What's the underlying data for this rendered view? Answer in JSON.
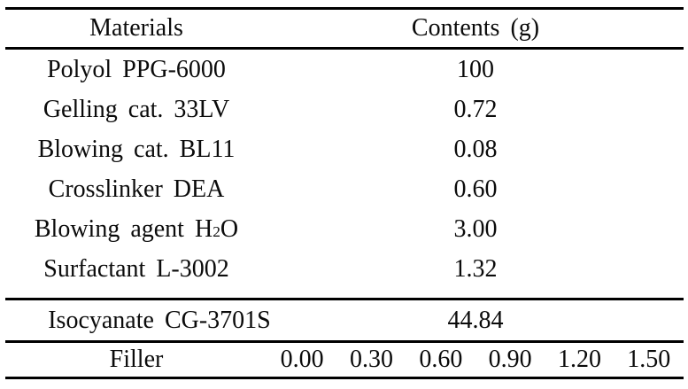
{
  "table": {
    "title_hint": "Polyurethane foam formulation table",
    "header": {
      "materials": "Materials",
      "contents": "Contents (g)"
    },
    "rows": [
      {
        "material": "Polyol PPG-6000",
        "content": "100"
      },
      {
        "material": "Gelling cat. 33LV",
        "content": "0.72"
      },
      {
        "material": "Blowing cat. BL11",
        "content": "0.08"
      },
      {
        "material": "Crosslinker DEA",
        "content": "0.60"
      },
      {
        "material_pre": "Blowing agent H",
        "material_sub": "2",
        "material_post": "O",
        "content": "3.00"
      },
      {
        "material": "Surfactant L-3002",
        "content": "1.32"
      }
    ],
    "isocyanate_row": {
      "material": "Isocyanate CG-3701S",
      "content": "44.84"
    },
    "filler_row": {
      "material": "Filler",
      "values": [
        "0.00",
        "0.30",
        "0.60",
        "0.90",
        "1.20",
        "1.50"
      ]
    }
  },
  "colors": {
    "background": "#ffffff",
    "text": "#0b0b0b",
    "rule": "#000000"
  }
}
